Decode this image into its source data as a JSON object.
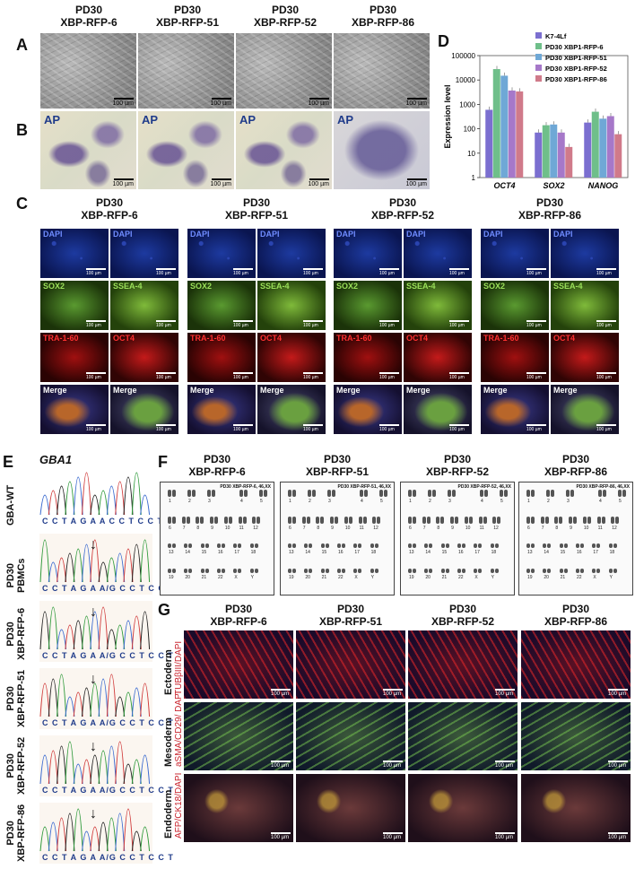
{
  "panel_letters": {
    "A": "A",
    "B": "B",
    "C": "C",
    "D": "D",
    "E": "E",
    "F": "F",
    "G": "G"
  },
  "clone_headers_top": [
    {
      "l1": "PD30",
      "l2": "XBP-RFP-6"
    },
    {
      "l1": "PD30",
      "l2": "XBP-RFP-51"
    },
    {
      "l1": "PD30",
      "l2": "XBP-RFP-52"
    },
    {
      "l1": "PD30",
      "l2": "XBP-RFP-86"
    }
  ],
  "scale_100": "100 µm",
  "ap_label": "AP",
  "panel_c": {
    "labels": {
      "dapi": "DAPI",
      "sox2": "SOX2",
      "ssea4": "SSEA-4",
      "tra": "TRA-1-60",
      "oct4": "OCT4",
      "merge": "Merge"
    }
  },
  "panel_e": {
    "gene": "GBA1",
    "rows": [
      {
        "label1": "GBA-WT",
        "label2": "",
        "bases": "C C T A G A A C C T C C T"
      },
      {
        "label1": "PD30",
        "label2": "PBMCs",
        "bases": "C C T A G A A/G C C T C C T"
      },
      {
        "label1": "PD30",
        "label2": "XBP-RFP-6",
        "bases": "C C T A G A A/G C C T C C T"
      },
      {
        "label1": "PD30",
        "label2": "XBP-RFP-51",
        "bases": "C C T A G A A/G C C T C C T"
      },
      {
        "label1": "PD30",
        "label2": "XBP-RFP-52",
        "bases": "C C T A G A A/G C C T C C T"
      },
      {
        "label1": "PD30",
        "label2": "XBP-RFP-86",
        "bases": "C C T A G A A/G C C T C C T"
      }
    ]
  },
  "panel_f": {
    "karyotypes": [
      "PD30 XBP-RFP-6, 46,XX",
      "PD30 XBP-RFP-51, 46,XX",
      "PD30 XBP-RFP-52, 46,XX",
      "PD30 XBP-RFP-86, 46,XX"
    ],
    "chrom_nums": [
      "1",
      "2",
      "3",
      "4",
      "5",
      "6",
      "7",
      "8",
      "9",
      "10",
      "11",
      "12",
      "13",
      "14",
      "15",
      "16",
      "17",
      "18",
      "19",
      "20",
      "21",
      "22",
      "X",
      "Y"
    ]
  },
  "panel_g": {
    "rows": [
      {
        "germ": "Ectoderm",
        "markers": "TUBβIII/DAPI"
      },
      {
        "germ": "Mesoderm",
        "markers": "aSMA/CD29/ DAPI"
      },
      {
        "germ": "Endoderm",
        "markers": "AFP/CK18/DAPI"
      }
    ]
  },
  "chart_data": {
    "type": "bar",
    "ylabel": "Expression level",
    "yscale": "log",
    "ylim": [
      1,
      100000
    ],
    "yticks": [
      "1",
      "10",
      "100",
      "1000",
      "10000",
      "100000"
    ],
    "categories": [
      "OCT4",
      "SOX2",
      "NANOG"
    ],
    "series": [
      {
        "name": "K7-4Lf",
        "color": "#7b6fd0",
        "values": [
          600,
          70,
          180
        ]
      },
      {
        "name": "PD30 XBP1-RFP-6",
        "color": "#6fbf8a",
        "values": [
          28000,
          140,
          500
        ]
      },
      {
        "name": "PD30 XBP1-RFP-51",
        "color": "#6fa8d6",
        "values": [
          15000,
          150,
          260
        ]
      },
      {
        "name": "PD30 XBP1-RFP-52",
        "color": "#a678c9",
        "values": [
          3700,
          70,
          330
        ]
      },
      {
        "name": "PD30 XBP1-RFP-86",
        "color": "#d07a8a",
        "values": [
          3400,
          18,
          60
        ]
      }
    ]
  }
}
